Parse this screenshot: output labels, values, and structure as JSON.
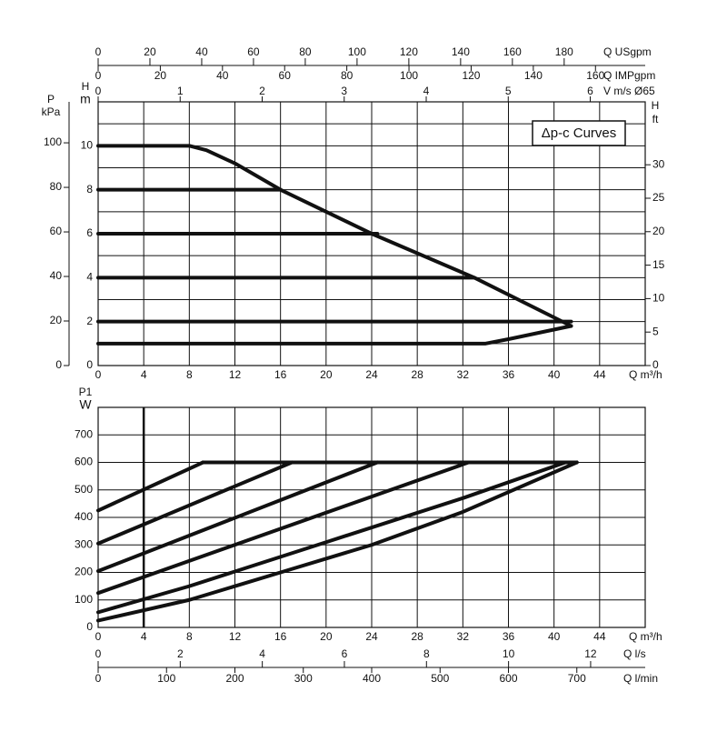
{
  "chart_data": [
    {
      "type": "line",
      "annotation": "Δp-c Curves",
      "xlabel": "Q m³/h",
      "xlim": [
        0,
        48
      ],
      "xticks": [
        0,
        4,
        8,
        12,
        16,
        20,
        24,
        28,
        32,
        36,
        40,
        44
      ],
      "ylabel": "H",
      "yunit": "m",
      "ylim": [
        0,
        12
      ],
      "yticks": [
        0,
        2,
        4,
        6,
        8,
        10
      ],
      "ygrid": [
        1,
        3,
        5,
        7,
        9,
        11
      ],
      "grid": true,
      "left_axis": {
        "label": "P",
        "unit": "kPa",
        "lim": [
          0,
          118.4
        ],
        "ticks": [
          0,
          20,
          40,
          60,
          80,
          100
        ]
      },
      "right_axis": {
        "label": "H",
        "unit": "ft",
        "lim": [
          0,
          39.4
        ],
        "ticks": [
          0,
          5,
          10,
          15,
          20,
          25,
          30
        ]
      },
      "top_axes": [
        {
          "label": "Q USgpm",
          "lim": [
            0,
            211.3
          ],
          "ticks": [
            0,
            20,
            40,
            60,
            80,
            100,
            120,
            140,
            160,
            180
          ]
        },
        {
          "label": "Q IMPgpm",
          "lim": [
            0,
            176
          ],
          "ticks": [
            0,
            20,
            40,
            60,
            80,
            100,
            120,
            140,
            160
          ]
        },
        {
          "label": "V m/s Ø65",
          "lim": [
            0,
            6.67
          ],
          "ticks": [
            0,
            1,
            2,
            3,
            4,
            5,
            6
          ]
        }
      ],
      "series": [
        {
          "color": "#111111",
          "x": [
            0,
            8,
            9.5,
            12,
            16,
            24,
            33,
            41.5
          ],
          "values": [
            10,
            10,
            9.8,
            9.2,
            8,
            6,
            4,
            1.8
          ]
        },
        {
          "color": "#111111",
          "x": [
            0,
            34,
            36,
            41.5
          ],
          "values": [
            1,
            1,
            1.2,
            1.8
          ]
        },
        {
          "color": "#111111",
          "x": [
            0,
            16
          ],
          "values": [
            8,
            8
          ]
        },
        {
          "color": "#111111",
          "x": [
            0,
            24.5
          ],
          "values": [
            6,
            6
          ]
        },
        {
          "color": "#111111",
          "x": [
            0,
            33
          ],
          "values": [
            4,
            4
          ]
        },
        {
          "color": "#111111",
          "x": [
            0,
            41.5
          ],
          "values": [
            2,
            2
          ]
        }
      ]
    },
    {
      "type": "line",
      "xlabel": "Q m³/h",
      "xlim": [
        0,
        48
      ],
      "xticks": [
        0,
        4,
        8,
        12,
        16,
        20,
        24,
        28,
        32,
        36,
        40,
        44
      ],
      "ylabel": "P1",
      "yunit": "W",
      "ylim": [
        0,
        800
      ],
      "yticks": [
        0,
        100,
        200,
        300,
        400,
        500,
        600,
        700
      ],
      "grid": true,
      "vline": 4,
      "bottom_axes": [
        {
          "label": "Q l/s",
          "lim": [
            0,
            13.33
          ],
          "ticks": [
            0,
            2,
            4,
            6,
            8,
            10,
            12
          ]
        },
        {
          "label": "Q l/min",
          "lim": [
            0,
            800
          ],
          "ticks": [
            0,
            100,
            200,
            300,
            400,
            500,
            600,
            700
          ]
        }
      ],
      "series": [
        {
          "color": "#111111",
          "x": [
            0,
            9.2
          ],
          "values": [
            425,
            600
          ]
        },
        {
          "color": "#111111",
          "x": [
            0,
            17
          ],
          "values": [
            305,
            600
          ]
        },
        {
          "color": "#111111",
          "x": [
            0,
            24.5
          ],
          "values": [
            205,
            600
          ]
        },
        {
          "color": "#111111",
          "x": [
            0,
            32.5
          ],
          "values": [
            125,
            600
          ]
        },
        {
          "color": "#111111",
          "x": [
            0,
            8,
            20,
            32,
            41
          ],
          "values": [
            55,
            150,
            310,
            470,
            600
          ]
        },
        {
          "color": "#111111",
          "x": [
            0,
            8,
            16,
            24,
            32,
            42
          ],
          "values": [
            25,
            100,
            200,
            300,
            420,
            600
          ]
        },
        {
          "color": "#111111",
          "x": [
            9.2,
            42
          ],
          "values": [
            600,
            600
          ]
        }
      ]
    }
  ]
}
